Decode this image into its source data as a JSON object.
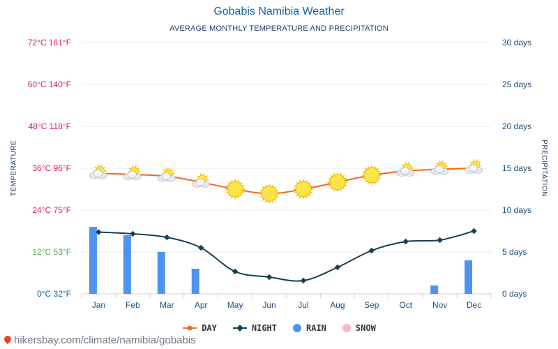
{
  "title": "Gobabis Namibia Weather",
  "subtitle": "AVERAGE MONTHLY TEMPERATURE AND PRECIPITATION",
  "footer": "hikersbay.com/climate/namibia/gobabis",
  "colors": {
    "title": "#1565a8",
    "day": "#f26a1b",
    "night": "#173e54",
    "rain": "#4f93f0",
    "snow": "#f7b6c9",
    "temp_label_warm": "#d6245e",
    "temp_label_mild": "#4caf50",
    "temp_label_cold": "#1a5fb4",
    "right_axis": "#1f4f7a"
  },
  "chart_data": {
    "type": "line",
    "title": "Gobabis Namibia Weather",
    "subtitle": "AVERAGE MONTHLY TEMPERATURE AND PRECIPITATION",
    "ylabel": "TEMPERATURE",
    "y2label": "PRECIPITATION",
    "categories": [
      "Jan",
      "Feb",
      "Mar",
      "Apr",
      "May",
      "Jun",
      "Jul",
      "Aug",
      "Sep",
      "Oct",
      "Nov",
      "Dec"
    ],
    "ylim": [
      0,
      72
    ],
    "y2lim": [
      0,
      30
    ],
    "temp_ticks": [
      {
        "c": 0,
        "label": "0°C 32°F"
      },
      {
        "c": 12,
        "label": "12°C 53°F"
      },
      {
        "c": 24,
        "label": "24°C 75°F"
      },
      {
        "c": 36,
        "label": "36°C 96°F"
      },
      {
        "c": 48,
        "label": "48°C 118°F"
      },
      {
        "c": 60,
        "label": "60°C 140°F"
      },
      {
        "c": 72,
        "label": "72°C 161°F"
      }
    ],
    "days_ticks": [
      {
        "d": 0,
        "label": "0 days"
      },
      {
        "d": 5,
        "label": "5 days"
      },
      {
        "d": 10,
        "label": "10 days"
      },
      {
        "d": 15,
        "label": "15 days"
      },
      {
        "d": 20,
        "label": "20 days"
      },
      {
        "d": 25,
        "label": "25 days"
      },
      {
        "d": 30,
        "label": "30 days"
      }
    ],
    "series": [
      {
        "name": "DAY",
        "type": "line",
        "axis": "temperature",
        "values": [
          34.5,
          34.2,
          33.7,
          32.0,
          30.0,
          28.7,
          30.0,
          32.0,
          34.0,
          35.2,
          35.7,
          36.0
        ],
        "icons": [
          "partly-cloudy",
          "partly-cloudy",
          "partly-cloudy",
          "partly-cloudy",
          "sunny",
          "sunny",
          "sunny",
          "sunny",
          "sunny",
          "partly-cloudy",
          "partly-cloudy",
          "partly-cloudy"
        ]
      },
      {
        "name": "NIGHT",
        "type": "line",
        "axis": "temperature",
        "values": [
          17.7,
          17.2,
          16.2,
          13.2,
          6.4,
          4.8,
          3.8,
          7.6,
          12.4,
          15.0,
          15.4,
          18.0
        ]
      },
      {
        "name": "RAIN",
        "type": "bar",
        "axis": "precipitation",
        "values": [
          8.0,
          7.0,
          5.0,
          3.0,
          0,
          0,
          0,
          0,
          0,
          0,
          1.0,
          4.0
        ]
      },
      {
        "name": "SNOW",
        "type": "bar",
        "axis": "precipitation",
        "values": [
          0,
          0,
          0,
          0,
          0,
          0,
          0,
          0,
          0,
          0,
          0,
          0
        ]
      }
    ],
    "grid": true,
    "legend_position": "bottom-center"
  }
}
